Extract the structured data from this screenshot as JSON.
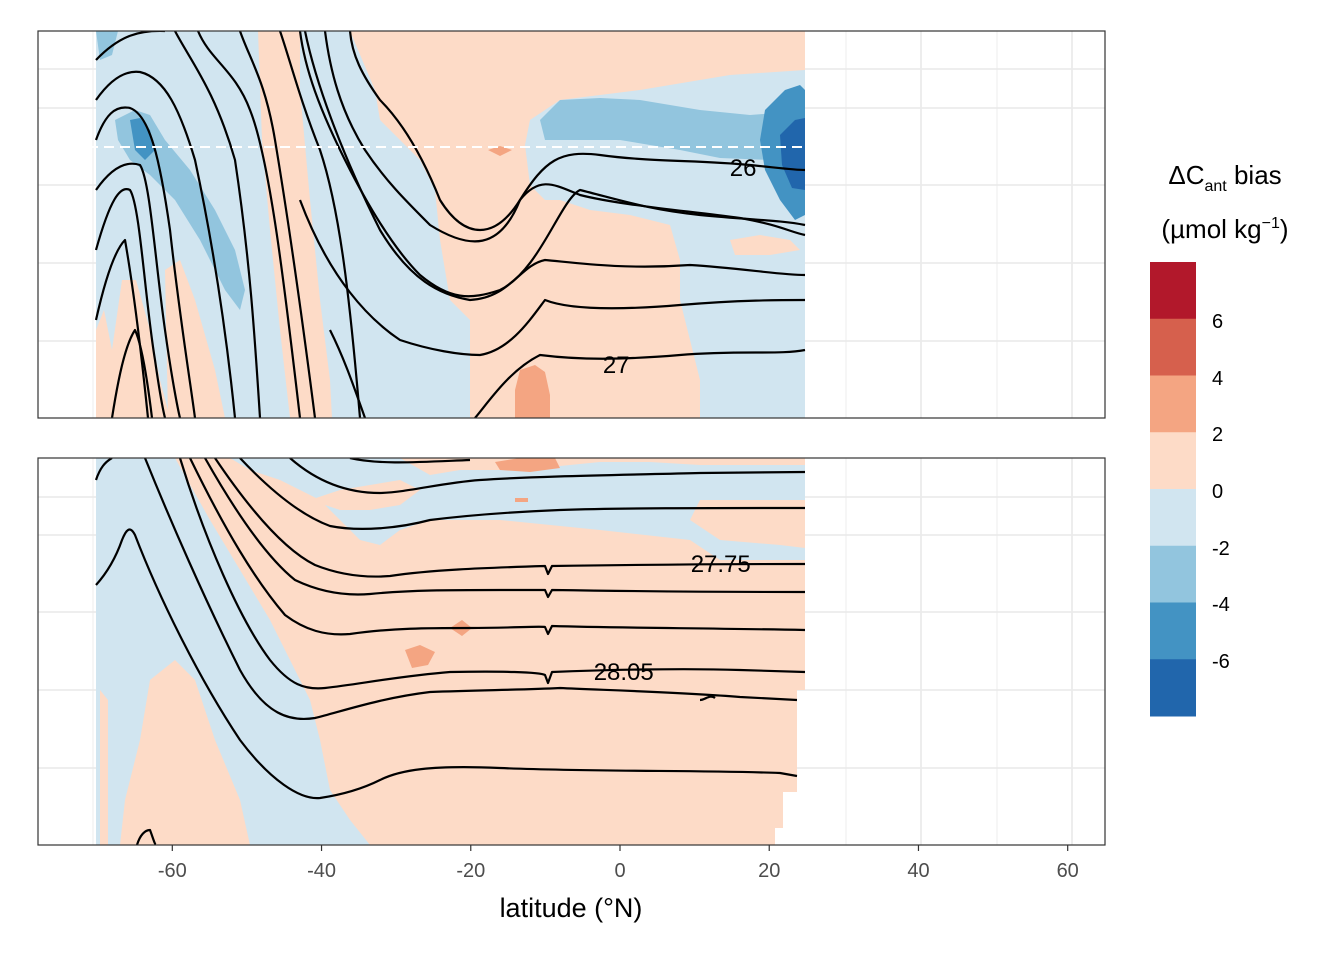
{
  "chart_data": {
    "type": "contour",
    "xlabel": "latitude (°N)",
    "xlim": [
      -78,
      65
    ],
    "x_ticks": [
      -60,
      -40,
      -20,
      0,
      20,
      40,
      60
    ],
    "data_extent_lat": [
      -70,
      24.5
    ],
    "panels": [
      {
        "name": "upper",
        "reference_line": "dashed white horizontal",
        "contour_labels": [
          {
            "text": "26",
            "lat": 16.5
          },
          {
            "text": "27",
            "lat": -0.5
          }
        ]
      },
      {
        "name": "lower",
        "contour_labels": [
          {
            "text": "27.75",
            "lat": 13.5
          },
          {
            "text": "28.05",
            "lat": 0.5
          }
        ]
      }
    ],
    "legend": {
      "title_main": "ΔC",
      "title_sub": "ant",
      "title_after": " bias",
      "units_open": "(µmol kg",
      "units_sup": "−1",
      "units_close": ")",
      "bins": [
        {
          "from": 6,
          "to": 8,
          "color": "#b2182b"
        },
        {
          "from": 4,
          "to": 6,
          "color": "#d6604d"
        },
        {
          "from": 2,
          "to": 4,
          "color": "#f4a582"
        },
        {
          "from": 0,
          "to": 2,
          "color": "#fddbc7"
        },
        {
          "from": -2,
          "to": 0,
          "color": "#d1e5f0"
        },
        {
          "from": -4,
          "to": -2,
          "color": "#92c5de"
        },
        {
          "from": -6,
          "to": -4,
          "color": "#4393c3"
        },
        {
          "from": -8,
          "to": -6,
          "color": "#2166ac"
        }
      ],
      "labels": [
        "6",
        "4",
        "2",
        "0",
        "-2",
        "-4",
        "-6"
      ]
    }
  },
  "strings": {
    "tick_m60": "-60",
    "tick_m40": "-40",
    "tick_m20": "-20",
    "tick_0": "0",
    "tick_20": "20",
    "tick_40": "40",
    "tick_60": "60",
    "label_26": "26",
    "label_27": "27",
    "label_2775": "27.75",
    "label_2805": "28.05",
    "leg_6": "6",
    "leg_4": "4",
    "leg_2": "2",
    "leg_0": "0",
    "leg_m2": "-2",
    "leg_m4": "-4",
    "leg_m6": "-6"
  }
}
